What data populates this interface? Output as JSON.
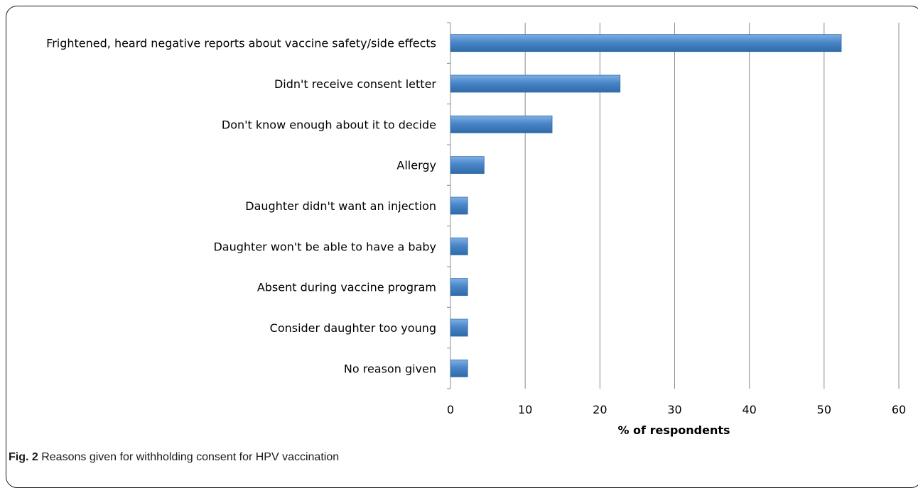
{
  "chart_data": {
    "type": "bar",
    "orientation": "horizontal",
    "categories": [
      "Frightened, heard negative reports about vaccine safety/side effects",
      "Didn't receive consent letter",
      "Don't know enough about it to decide",
      "Allergy",
      "Daughter didn't want an injection",
      "Daughter won't be able to have a baby",
      "Absent during vaccine program",
      "Consider daughter too young",
      "No reason given"
    ],
    "values": [
      52.3,
      22.7,
      13.6,
      4.5,
      2.3,
      2.3,
      2.3,
      2.3,
      2.3
    ],
    "title": "",
    "xlabel": "% of respondents",
    "ylabel": "",
    "xlim": [
      0,
      60
    ],
    "xticks": [
      "0",
      "10",
      "20",
      "30",
      "40",
      "50",
      "60"
    ],
    "grid": "vertical",
    "legend": "none",
    "bar_color": "#4a86c8",
    "bar_highlight": "#7fb0e4",
    "bar_edge": "#2f6aa8"
  },
  "caption": {
    "label": "Fig. 2",
    "text": " Reasons given for withholding consent for HPV vaccination"
  }
}
